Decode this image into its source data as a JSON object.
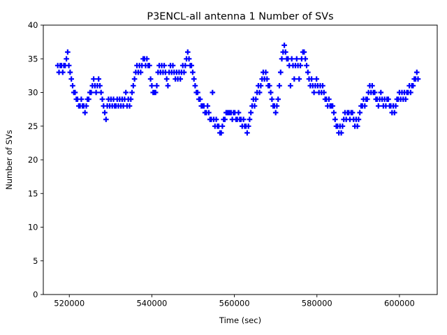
{
  "chart_data": {
    "type": "scatter",
    "title": "P3ENCL-all antenna 1 Number of SVs",
    "xlabel": "Time (sec)",
    "ylabel": "Number of SVs",
    "xlim": [
      513700,
      609150
    ],
    "ylim": [
      0,
      40
    ],
    "x_ticks": [
      520000,
      540000,
      560000,
      580000,
      600000
    ],
    "y_ticks": [
      0,
      5,
      10,
      15,
      20,
      25,
      30,
      35,
      40
    ],
    "grid": false,
    "legend": "none",
    "marker": "+",
    "series": [
      {
        "name": "Number of SVs",
        "color": "#0000ff",
        "x": [
          517200,
          517500,
          517800,
          518100,
          518400,
          518700,
          519000,
          519300,
          519600,
          519900,
          520200,
          520500,
          520800,
          521100,
          521400,
          521700,
          522000,
          522300,
          522600,
          522900,
          523200,
          523500,
          523800,
          524100,
          524400,
          524700,
          525000,
          525300,
          525600,
          525900,
          526200,
          526500,
          526800,
          527100,
          527400,
          527700,
          528000,
          528300,
          528600,
          528900,
          529200,
          529500,
          529800,
          530100,
          530400,
          530700,
          531000,
          531300,
          531600,
          531900,
          532200,
          532500,
          532800,
          533100,
          533400,
          533700,
          534000,
          534300,
          534600,
          534900,
          535200,
          535500,
          535800,
          536100,
          536400,
          536700,
          537000,
          537300,
          537600,
          537900,
          538200,
          538500,
          538800,
          539100,
          539400,
          539700,
          540000,
          540300,
          540600,
          540900,
          541200,
          541500,
          541800,
          542100,
          542400,
          542700,
          543000,
          543300,
          543600,
          543900,
          544200,
          544500,
          544800,
          545100,
          545400,
          545700,
          546000,
          546300,
          546600,
          546900,
          547200,
          547500,
          547800,
          548100,
          548400,
          548700,
          549000,
          549300,
          549600,
          549900,
          550200,
          550500,
          550800,
          551100,
          551400,
          551700,
          552000,
          552300,
          552600,
          552900,
          553200,
          553500,
          553800,
          554100,
          554400,
          554700,
          555000,
          555300,
          555600,
          555900,
          556200,
          556500,
          556800,
          557100,
          557400,
          557700,
          558000,
          558300,
          558600,
          558900,
          559200,
          559500,
          559800,
          560100,
          560400,
          560700,
          561000,
          561300,
          561600,
          561900,
          562200,
          562500,
          562800,
          563100,
          563400,
          563700,
          564000,
          564300,
          564600,
          564900,
          565200,
          565500,
          565800,
          566100,
          566400,
          566700,
          567000,
          567300,
          567600,
          567900,
          568200,
          568500,
          568800,
          569100,
          569400,
          569700,
          570000,
          570300,
          570600,
          570900,
          571200,
          571500,
          571800,
          572100,
          572400,
          572700,
          573000,
          573300,
          573600,
          573900,
          574200,
          574500,
          574800,
          575100,
          575400,
          575700,
          576000,
          576300,
          576600,
          576900,
          577200,
          577500,
          577800,
          578100,
          578400,
          578700,
          579000,
          579300,
          579600,
          579900,
          580200,
          580500,
          580800,
          581100,
          581400,
          581700,
          582000,
          582300,
          582600,
          582900,
          583200,
          583500,
          583800,
          584100,
          584400,
          584700,
          585000,
          585300,
          585600,
          585900,
          586200,
          586500,
          586800,
          587100,
          587400,
          587700,
          588000,
          588300,
          588600,
          588900,
          589200,
          589500,
          589800,
          590100,
          590400,
          590700,
          591000,
          591300,
          591600,
          591900,
          592200,
          592500,
          592800,
          593100,
          593400,
          593700,
          594000,
          594300,
          594600,
          594900,
          595200,
          595500,
          595800,
          596100,
          596400,
          596700,
          597000,
          597300,
          597600,
          597900,
          598200,
          598500,
          598800,
          599100,
          599400,
          599700,
          600000,
          600300,
          600600,
          600900,
          601200,
          601500,
          601800,
          602100,
          602400,
          602700,
          603000,
          603300,
          603600,
          603900,
          604200,
          604500
        ],
        "y": [
          34,
          33,
          34,
          34,
          33,
          34,
          34,
          35,
          36,
          34,
          33,
          32,
          31,
          30,
          30,
          29,
          29,
          28,
          28,
          29,
          28,
          28,
          27,
          28,
          29,
          29,
          30,
          30,
          31,
          32,
          31,
          30,
          31,
          32,
          31,
          30,
          29,
          28,
          27,
          26,
          28,
          29,
          28,
          29,
          28,
          29,
          28,
          28,
          29,
          28,
          29,
          28,
          29,
          28,
          29,
          30,
          28,
          29,
          28,
          29,
          30,
          31,
          32,
          33,
          34,
          33,
          34,
          33,
          34,
          35,
          35,
          34,
          35,
          34,
          34,
          32,
          31,
          30,
          30,
          30,
          31,
          33,
          34,
          33,
          34,
          33,
          34,
          33,
          32,
          31,
          33,
          34,
          33,
          34,
          33,
          32,
          33,
          32,
          33,
          32,
          33,
          34,
          33,
          34,
          35,
          36,
          35,
          34,
          34,
          33,
          32,
          31,
          30,
          30,
          29,
          29,
          28,
          28,
          28,
          27,
          27,
          28,
          27,
          26,
          26,
          30,
          26,
          25,
          26,
          25,
          25,
          24,
          24,
          25,
          26,
          26,
          27,
          27,
          27,
          27,
          27,
          26,
          27,
          27,
          26,
          26,
          27,
          26,
          26,
          25,
          26,
          25,
          25,
          24,
          25,
          26,
          27,
          28,
          29,
          28,
          29,
          30,
          31,
          30,
          31,
          32,
          33,
          32,
          33,
          32,
          31,
          31,
          30,
          29,
          28,
          28,
          27,
          28,
          29,
          31,
          33,
          35,
          36,
          37,
          36,
          35,
          35,
          34,
          31,
          35,
          34,
          32,
          34,
          35,
          34,
          32,
          34,
          35,
          36,
          36,
          35,
          34,
          33,
          32,
          31,
          32,
          31,
          30,
          31,
          32,
          31,
          30,
          31,
          30,
          31,
          30,
          29,
          29,
          28,
          29,
          28,
          28,
          28,
          27,
          26,
          25,
          25,
          24,
          25,
          24,
          25,
          26,
          27,
          26,
          27,
          27,
          26,
          27,
          27,
          26,
          25,
          26,
          25,
          26,
          27,
          28,
          28,
          29,
          28,
          29,
          29,
          30,
          31,
          30,
          31,
          30,
          30,
          29,
          29,
          28,
          29,
          30,
          29,
          28,
          29,
          28,
          29,
          29,
          28,
          28,
          27,
          28,
          27,
          28,
          29,
          29,
          30,
          29,
          30,
          29,
          30,
          29,
          30,
          30,
          31,
          30,
          31,
          31,
          32,
          32,
          33,
          32
        ]
      }
    ]
  }
}
